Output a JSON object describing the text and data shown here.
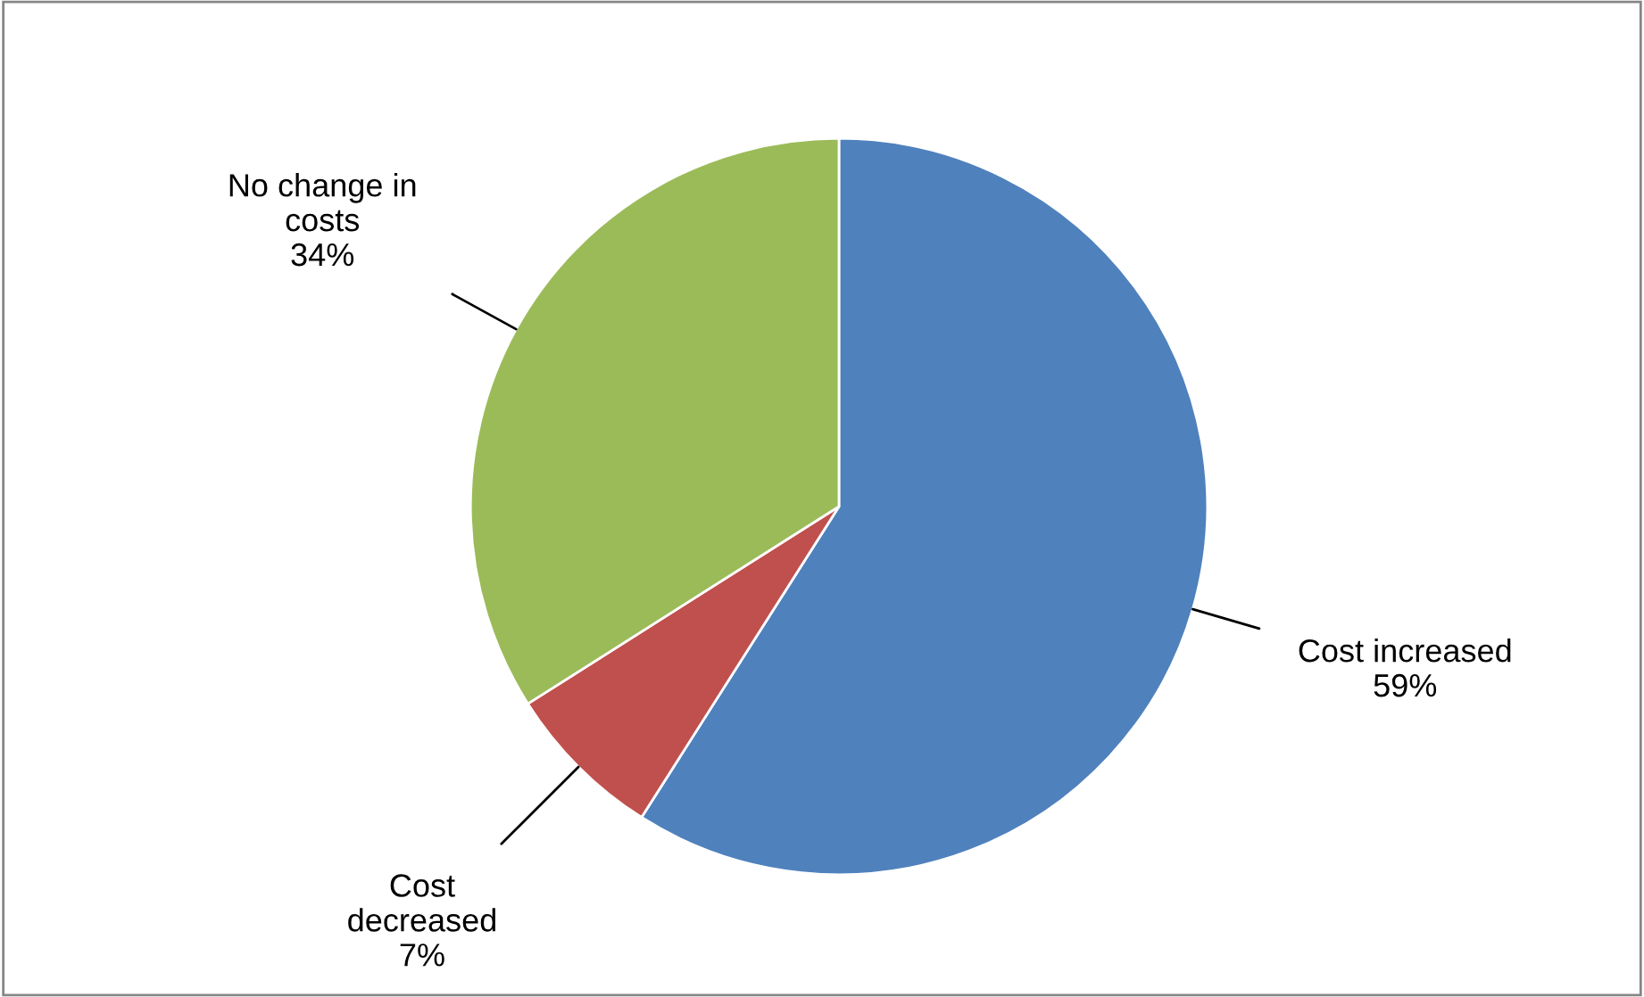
{
  "chart_data": {
    "type": "pie",
    "categories": [
      "Cost increased",
      "Cost\ndecreased",
      "No change in\ncosts"
    ],
    "values": [
      59,
      7,
      34
    ],
    "value_labels": [
      "59%",
      "7%",
      "34%"
    ],
    "colors": [
      "#4f81bd",
      "#c0504d",
      "#9bbb59"
    ],
    "legend": false
  }
}
